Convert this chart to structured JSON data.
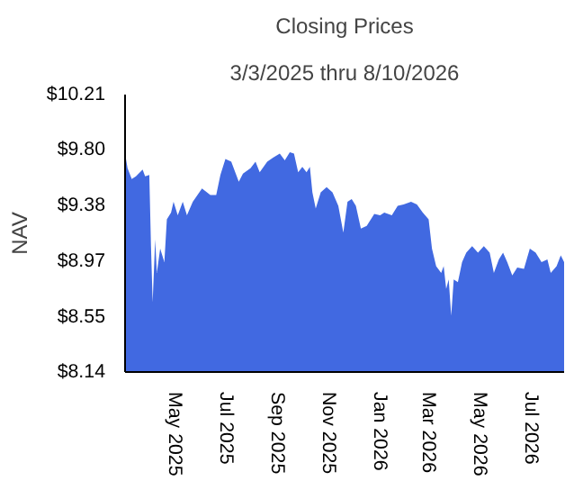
{
  "chart_data": {
    "type": "area",
    "title": "Closing Prices",
    "subtitle": "3/3/2025 thru 8/10/2026",
    "ylabel": "NAV",
    "x": [
      "2025-03-03",
      "2025-03-06",
      "2025-03-11",
      "2025-03-16",
      "2025-03-24",
      "2025-03-27",
      "2025-04-01",
      "2025-04-03",
      "2025-04-05",
      "2025-04-08",
      "2025-04-10",
      "2025-04-14",
      "2025-04-19",
      "2025-04-22",
      "2025-04-27",
      "2025-04-30",
      "2025-05-05",
      "2025-05-11",
      "2025-05-16",
      "2025-05-23",
      "2025-06-03",
      "2025-06-13",
      "2025-06-20",
      "2025-06-25",
      "2025-07-01",
      "2025-07-08",
      "2025-07-17",
      "2025-07-22",
      "2025-07-31",
      "2025-08-06",
      "2025-08-11",
      "2025-08-20",
      "2025-08-27",
      "2025-09-04",
      "2025-09-10",
      "2025-09-16",
      "2025-09-21",
      "2025-09-26",
      "2025-10-01",
      "2025-10-06",
      "2025-10-10",
      "2025-10-13",
      "2025-10-17",
      "2025-10-23",
      "2025-10-30",
      "2025-11-06",
      "2025-11-13",
      "2025-11-19",
      "2025-11-24",
      "2025-11-29",
      "2025-12-04",
      "2025-12-10",
      "2025-12-17",
      "2025-12-26",
      "2026-01-02",
      "2026-01-07",
      "2026-01-16",
      "2026-01-23",
      "2026-01-30",
      "2026-02-08",
      "2026-02-15",
      "2026-02-22",
      "2026-03-01",
      "2026-03-05",
      "2026-03-10",
      "2026-03-16",
      "2026-03-19",
      "2026-03-22",
      "2026-03-25",
      "2026-03-28",
      "2026-03-31",
      "2026-04-05",
      "2026-04-10",
      "2026-04-15",
      "2026-04-22",
      "2026-04-29",
      "2026-05-06",
      "2026-05-13",
      "2026-05-18",
      "2026-05-24",
      "2026-05-29",
      "2026-06-03",
      "2026-06-09",
      "2026-06-15",
      "2026-06-23",
      "2026-06-30",
      "2026-07-07",
      "2026-07-14",
      "2026-07-21",
      "2026-07-25",
      "2026-08-01",
      "2026-08-06",
      "2026-08-10"
    ],
    "series": [
      {
        "color": "#4169e1",
        "values": [
          9.77,
          9.66,
          9.58,
          9.6,
          9.65,
          9.6,
          9.61,
          9.08,
          8.66,
          9.13,
          8.88,
          9.06,
          8.96,
          9.28,
          9.33,
          9.41,
          9.31,
          9.41,
          9.31,
          9.41,
          9.51,
          9.46,
          9.46,
          9.61,
          9.73,
          9.71,
          9.56,
          9.62,
          9.66,
          9.71,
          9.63,
          9.71,
          9.74,
          9.77,
          9.72,
          9.78,
          9.77,
          9.63,
          9.67,
          9.63,
          9.67,
          9.48,
          9.36,
          9.48,
          9.52,
          9.48,
          9.38,
          9.18,
          9.41,
          9.43,
          9.38,
          9.21,
          9.23,
          9.32,
          9.31,
          9.33,
          9.31,
          9.38,
          9.39,
          9.41,
          9.39,
          9.33,
          9.28,
          9.06,
          8.93,
          8.88,
          8.93,
          8.76,
          8.83,
          8.56,
          8.83,
          8.81,
          8.96,
          9.03,
          9.08,
          9.03,
          9.08,
          9.03,
          8.88,
          8.98,
          9.03,
          8.96,
          8.86,
          8.92,
          8.91,
          9.06,
          9.03,
          8.96,
          8.98,
          8.88,
          8.93,
          9.01,
          8.96
        ]
      }
    ],
    "xlim": [
      "2025-03-03",
      "2026-08-10"
    ],
    "xticks": [
      {
        "value": "2025-05-01",
        "label": "May 2025"
      },
      {
        "value": "2025-07-01",
        "label": "Jul 2025"
      },
      {
        "value": "2025-09-01",
        "label": "Sep 2025"
      },
      {
        "value": "2025-11-01",
        "label": "Nov 2025"
      },
      {
        "value": "2026-01-01",
        "label": "Jan 2026"
      },
      {
        "value": "2026-03-01",
        "label": "Mar 2026"
      },
      {
        "value": "2026-05-01",
        "label": "May 2026"
      },
      {
        "value": "2026-07-01",
        "label": "Jul 2026"
      }
    ],
    "ylim": [
      8.14,
      10.21
    ],
    "yticks": [
      {
        "value": 8.14,
        "label": "$8.14"
      },
      {
        "value": 8.55,
        "label": "$8.55"
      },
      {
        "value": 8.97,
        "label": "$8.97"
      },
      {
        "value": 9.38,
        "label": "$9.38"
      },
      {
        "value": 9.8,
        "label": "$9.80"
      },
      {
        "value": 10.21,
        "label": "$10.21"
      }
    ],
    "grid": false
  }
}
